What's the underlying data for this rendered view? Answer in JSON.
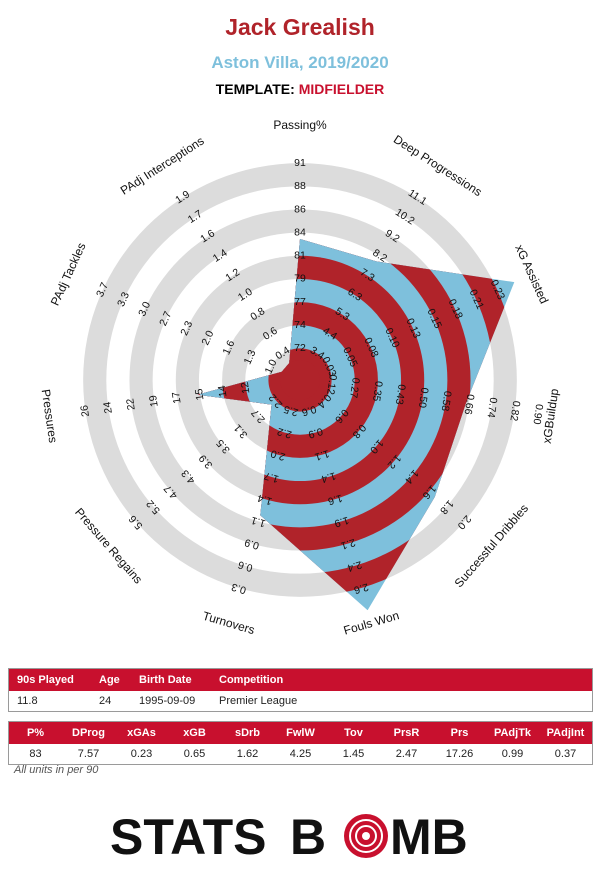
{
  "header": {
    "player_name": "Jack Grealish",
    "team_season": "Aston Villa, 2019/2020",
    "template_label": "TEMPLATE:",
    "template_value": "MIDFIELDER"
  },
  "colors": {
    "title": "#b0232a",
    "subtitle": "#7ec0dc",
    "accent": "#c8102e",
    "ring_grey": "#dcdcdc",
    "inner_red": "#b0232a",
    "inner_blue": "#7ec0dc"
  },
  "chart_data": {
    "type": "radar",
    "rings": 5,
    "axes": [
      {
        "label": "Passing%",
        "ticks": [
          "72",
          "74",
          "77",
          "79",
          "81",
          "84",
          "86",
          "88",
          "91"
        ],
        "value": 83,
        "fraction": 0.55
      },
      {
        "label": "Deep Progressions",
        "ticks": [
          "3.4",
          "4.4",
          "5.3",
          "6.3",
          "7.3",
          "8.2",
          "9.2",
          "10.2",
          "11.1"
        ],
        "value": 7.57,
        "fraction": 0.55
      },
      {
        "label": "xG Assisted",
        "ticks": [
          "0.03",
          "0.05",
          "0.08",
          "0.10",
          "0.13",
          "0.15",
          "0.18",
          "0.21",
          "0.23"
        ],
        "value": 0.23,
        "fraction": 0.98
      },
      {
        "label": "xGBuildup",
        "ticks": [
          "0.12",
          "0.27",
          "0.35",
          "0.43",
          "0.50",
          "0.58",
          "0.66",
          "0.74",
          "0.82",
          "0.90"
        ],
        "value": 0.65,
        "fraction": 0.67
      },
      {
        "label": "Successful Dribbles",
        "ticks": [
          "0.4",
          "0.6",
          "0.8",
          "1.0",
          "1.2",
          "1.4",
          "1.6",
          "1.8",
          "2.0"
        ],
        "value": 1.62,
        "fraction": 0.72
      },
      {
        "label": "Fouls Won",
        "ticks": [
          "0.6",
          "0.9",
          "1.1",
          "1.4",
          "1.6",
          "1.9",
          "2.1",
          "2.4",
          "2.6"
        ],
        "value": 4.25,
        "fraction": 1.0
      },
      {
        "label": "Turnovers",
        "ticks": [
          "2.5",
          "2.2",
          "2.0",
          "1.7",
          "1.4",
          "1.1",
          "0.9",
          "0.6",
          "0.3"
        ],
        "value": 1.45,
        "fraction": 0.55
      },
      {
        "label": "Pressure Regains",
        "ticks": [
          "2.2",
          "2.7",
          "3.1",
          "3.5",
          "3.9",
          "4.3",
          "4.7",
          "5.2",
          "5.6"
        ],
        "value": 2.47,
        "fraction": 0.08
      },
      {
        "label": "Pressures",
        "ticks": [
          "12",
          "14",
          "15",
          "17",
          "19",
          "22",
          "24",
          "26"
        ],
        "value": 17.26,
        "fraction": 0.38
      },
      {
        "label": "PAdj Tackles",
        "ticks": [
          "1.0",
          "1.3",
          "1.6",
          "2.0",
          "2.3",
          "2.7",
          "3.0",
          "3.3",
          "3.7"
        ],
        "value": 0.99,
        "fraction": 0.0
      },
      {
        "label": "PAdj Interceptions",
        "ticks": [
          "0.4",
          "0.6",
          "0.8",
          "1.0",
          "1.2",
          "1.4",
          "1.6",
          "1.7",
          "1.9"
        ],
        "value": 0.37,
        "fraction": 0.0
      }
    ]
  },
  "bio_table": {
    "headers": [
      "90s Played",
      "Age",
      "Birth Date",
      "Competition"
    ],
    "values": [
      "11.8",
      "24",
      "1995-09-09",
      "Premier League"
    ]
  },
  "stats_table": {
    "headers": [
      "P%",
      "DProg",
      "xGAs",
      "xGB",
      "sDrb",
      "FwlW",
      "Tov",
      "PrsR",
      "Prs",
      "PAdjTk",
      "PAdjInt"
    ],
    "values": [
      "83",
      "7.57",
      "0.23",
      "0.65",
      "1.62",
      "4.25",
      "1.45",
      "2.47",
      "17.26",
      "0.99",
      "0.37"
    ]
  },
  "footnote": "All units in per 90",
  "logo": {
    "part1": "STATS",
    "part2": "B",
    "part3": "MB"
  }
}
